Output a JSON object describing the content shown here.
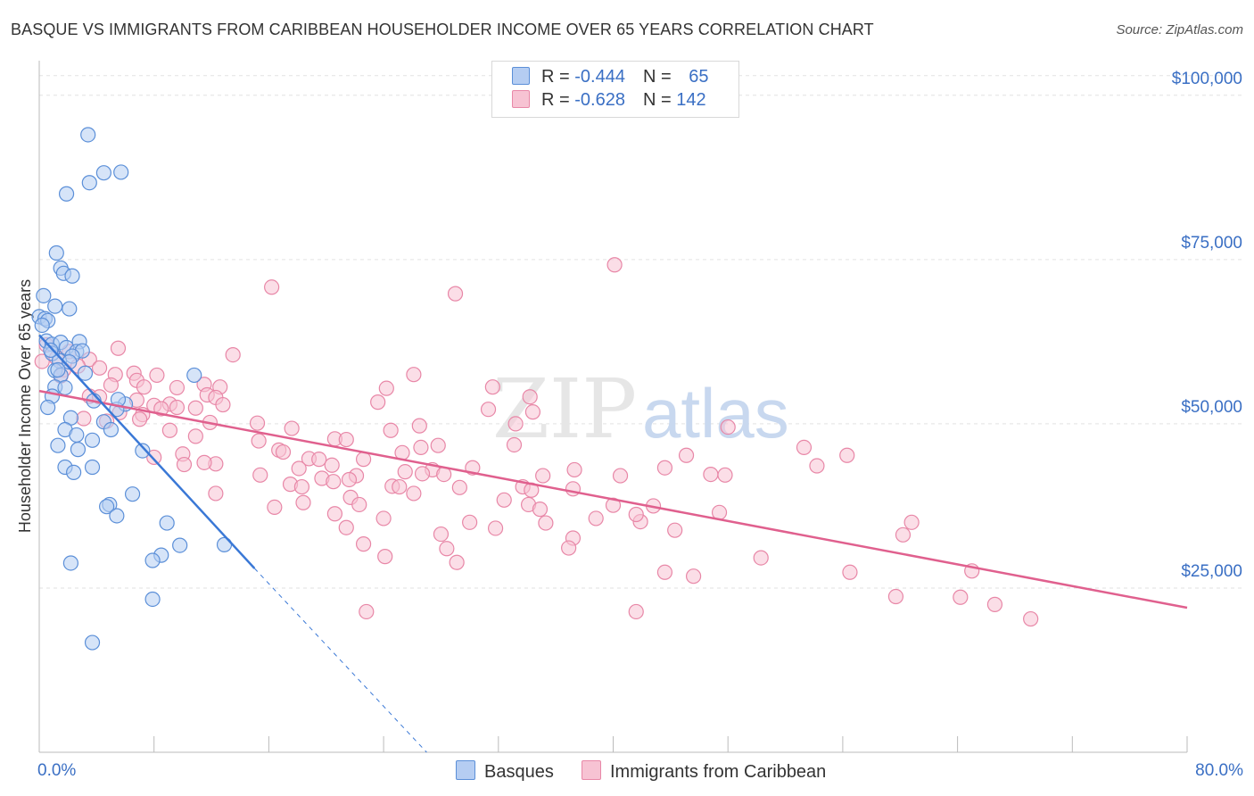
{
  "title": "BASQUE VS IMMIGRANTS FROM CARIBBEAN HOUSEHOLDER INCOME OVER 65 YEARS CORRELATION CHART",
  "source": "Source: ZipAtlas.com",
  "watermark": {
    "zip": "ZIP",
    "atlas": "atlas"
  },
  "legend": {
    "basque": {
      "r_label": "R = ",
      "r_value": "-0.444",
      "n_label": "N = ",
      "n_value": "65"
    },
    "caribbean": {
      "r_label": "R = ",
      "r_value": "-0.628",
      "n_label": "N = ",
      "n_value": "142"
    }
  },
  "colors": {
    "basque_fill": "#b5cdf2",
    "basque_stroke": "#5b8fd8",
    "basque_line": "#3a78d6",
    "carib_fill": "#f7c3d3",
    "carib_stroke": "#e887a7",
    "carib_line": "#e0608e",
    "grid": "#e2e2e2",
    "tick_text": "#3a6fc4"
  },
  "chart_data": {
    "type": "scatter",
    "title": "BASQUE VS IMMIGRANTS FROM CARIBBEAN HOUSEHOLDER INCOME OVER 65 YEARS CORRELATION CHART",
    "xlabel": "",
    "ylabel": "Householder Income Over 65 years",
    "xlim": [
      0,
      80
    ],
    "ylim": [
      0,
      105000
    ],
    "x_tick_labels": [
      "0.0%",
      "80.0%"
    ],
    "y_ticks": [
      25000,
      50000,
      75000,
      100000
    ],
    "y_tick_labels": [
      "$25,000",
      "$50,000",
      "$75,000",
      "$100,000"
    ],
    "grid": true,
    "series": [
      {
        "name": "Basques",
        "trend": {
          "x0": 0,
          "y0": 63500,
          "x1": 15,
          "y1": 28000,
          "dash_to_x": 27,
          "dash_to_y": 0
        },
        "points": [
          [
            3.4,
            94000
          ],
          [
            4.5,
            88200
          ],
          [
            5.7,
            88300
          ],
          [
            3.5,
            86700
          ],
          [
            1.9,
            85000
          ],
          [
            1.2,
            76000
          ],
          [
            1.5,
            73700
          ],
          [
            1.7,
            72900
          ],
          [
            2.3,
            72500
          ],
          [
            0.3,
            69500
          ],
          [
            1.1,
            67900
          ],
          [
            2.1,
            67500
          ],
          [
            0.0,
            66300
          ],
          [
            0.4,
            66000
          ],
          [
            0.6,
            65700
          ],
          [
            0.2,
            65000
          ],
          [
            0.5,
            62600
          ],
          [
            0.9,
            62100
          ],
          [
            1.5,
            62400
          ],
          [
            2.8,
            62500
          ],
          [
            1.9,
            61600
          ],
          [
            2.6,
            61000
          ],
          [
            0.9,
            60700
          ],
          [
            3.0,
            61100
          ],
          [
            2.3,
            60300
          ],
          [
            1.4,
            59600
          ],
          [
            1.1,
            58100
          ],
          [
            3.2,
            57700
          ],
          [
            1.5,
            57400
          ],
          [
            10.8,
            57400
          ],
          [
            1.1,
            55600
          ],
          [
            1.8,
            55500
          ],
          [
            0.9,
            54200
          ],
          [
            3.8,
            53500
          ],
          [
            6.0,
            53000
          ],
          [
            0.6,
            52500
          ],
          [
            5.4,
            52200
          ],
          [
            2.2,
            50900
          ],
          [
            4.5,
            50300
          ],
          [
            1.8,
            49100
          ],
          [
            5.0,
            49100
          ],
          [
            2.6,
            48300
          ],
          [
            3.7,
            47500
          ],
          [
            1.3,
            46700
          ],
          [
            2.7,
            46100
          ],
          [
            7.2,
            45900
          ],
          [
            1.8,
            43400
          ],
          [
            3.7,
            43400
          ],
          [
            2.4,
            42600
          ],
          [
            6.5,
            39300
          ],
          [
            4.9,
            37700
          ],
          [
            4.7,
            37400
          ],
          [
            5.4,
            36000
          ],
          [
            8.9,
            34900
          ],
          [
            9.8,
            31500
          ],
          [
            12.9,
            31600
          ],
          [
            8.5,
            30000
          ],
          [
            7.9,
            29200
          ],
          [
            2.2,
            28800
          ],
          [
            7.9,
            23300
          ],
          [
            3.7,
            16700
          ],
          [
            0.8,
            61200
          ],
          [
            2.1,
            59400
          ],
          [
            1.3,
            58200
          ],
          [
            5.5,
            53700
          ]
        ]
      },
      {
        "name": "Immigrants from Caribbean",
        "trend": {
          "x0": 0,
          "y0": 55000,
          "x1": 80,
          "y1": 22000
        },
        "points": [
          [
            40.1,
            74200
          ],
          [
            16.2,
            70800
          ],
          [
            29.0,
            69800
          ],
          [
            0.5,
            62000
          ],
          [
            5.5,
            61500
          ],
          [
            2.1,
            61000
          ],
          [
            13.5,
            60500
          ],
          [
            1.2,
            60000
          ],
          [
            3.5,
            59800
          ],
          [
            0.2,
            59500
          ],
          [
            2.7,
            58800
          ],
          [
            4.2,
            58500
          ],
          [
            1.7,
            58200
          ],
          [
            6.6,
            57700
          ],
          [
            5.3,
            57500
          ],
          [
            8.2,
            57400
          ],
          [
            1.5,
            57300
          ],
          [
            26.1,
            57500
          ],
          [
            6.8,
            56600
          ],
          [
            11.5,
            56000
          ],
          [
            5.0,
            55900
          ],
          [
            9.6,
            55500
          ],
          [
            7.3,
            55600
          ],
          [
            12.6,
            55600
          ],
          [
            24.2,
            55400
          ],
          [
            31.6,
            55600
          ],
          [
            3.5,
            54200
          ],
          [
            11.7,
            54400
          ],
          [
            4.2,
            54100
          ],
          [
            12.3,
            54000
          ],
          [
            6.8,
            53600
          ],
          [
            34.2,
            54100
          ],
          [
            23.6,
            53300
          ],
          [
            9.1,
            53000
          ],
          [
            12.8,
            52900
          ],
          [
            8.0,
            52800
          ],
          [
            9.6,
            52500
          ],
          [
            10.9,
            52400
          ],
          [
            8.5,
            52300
          ],
          [
            31.3,
            52200
          ],
          [
            34.4,
            51800
          ],
          [
            5.6,
            51700
          ],
          [
            7.2,
            51400
          ],
          [
            3.1,
            50800
          ],
          [
            7.0,
            50700
          ],
          [
            4.7,
            50400
          ],
          [
            11.9,
            50200
          ],
          [
            15.2,
            50100
          ],
          [
            33.2,
            50000
          ],
          [
            48.0,
            49500
          ],
          [
            17.6,
            49300
          ],
          [
            24.5,
            49000
          ],
          [
            26.5,
            49700
          ],
          [
            9.1,
            49000
          ],
          [
            10.9,
            48100
          ],
          [
            20.6,
            47700
          ],
          [
            21.4,
            47600
          ],
          [
            15.3,
            47400
          ],
          [
            27.8,
            46700
          ],
          [
            33.1,
            46800
          ],
          [
            26.6,
            46400
          ],
          [
            16.7,
            46000
          ],
          [
            17.0,
            45700
          ],
          [
            10.0,
            45400
          ],
          [
            25.3,
            45600
          ],
          [
            8.0,
            44900
          ],
          [
            18.8,
            44700
          ],
          [
            19.5,
            44600
          ],
          [
            22.6,
            44600
          ],
          [
            12.3,
            43900
          ],
          [
            11.5,
            44100
          ],
          [
            10.1,
            43800
          ],
          [
            20.4,
            43700
          ],
          [
            18.1,
            43200
          ],
          [
            30.2,
            43300
          ],
          [
            27.4,
            43000
          ],
          [
            37.3,
            43000
          ],
          [
            43.6,
            43300
          ],
          [
            54.2,
            43600
          ],
          [
            56.3,
            45200
          ],
          [
            53.3,
            46400
          ],
          [
            45.1,
            45200
          ],
          [
            46.8,
            42300
          ],
          [
            47.8,
            42200
          ],
          [
            15.4,
            42200
          ],
          [
            22.1,
            42100
          ],
          [
            25.5,
            42700
          ],
          [
            26.7,
            42400
          ],
          [
            28.2,
            42300
          ],
          [
            35.1,
            42100
          ],
          [
            40.5,
            42100
          ],
          [
            19.7,
            41700
          ],
          [
            21.6,
            41500
          ],
          [
            20.5,
            41200
          ],
          [
            17.5,
            40800
          ],
          [
            18.3,
            40400
          ],
          [
            24.6,
            40500
          ],
          [
            25.1,
            40400
          ],
          [
            29.3,
            40300
          ],
          [
            33.7,
            40400
          ],
          [
            37.2,
            40100
          ],
          [
            34.3,
            39900
          ],
          [
            26.1,
            39400
          ],
          [
            12.3,
            39400
          ],
          [
            21.7,
            38800
          ],
          [
            18.4,
            38000
          ],
          [
            22.3,
            37700
          ],
          [
            34.1,
            37700
          ],
          [
            32.4,
            38400
          ],
          [
            40.0,
            37600
          ],
          [
            42.8,
            37500
          ],
          [
            47.4,
            36500
          ],
          [
            41.9,
            35100
          ],
          [
            16.4,
            37300
          ],
          [
            20.6,
            36300
          ],
          [
            24.0,
            35600
          ],
          [
            30.0,
            35000
          ],
          [
            35.3,
            34900
          ],
          [
            34.9,
            37000
          ],
          [
            38.8,
            35600
          ],
          [
            44.3,
            33800
          ],
          [
            41.6,
            36200
          ],
          [
            31.8,
            34100
          ],
          [
            60.2,
            33100
          ],
          [
            60.8,
            35000
          ],
          [
            21.4,
            34200
          ],
          [
            28.0,
            33200
          ],
          [
            28.4,
            31000
          ],
          [
            37.2,
            32600
          ],
          [
            36.9,
            31100
          ],
          [
            22.6,
            31700
          ],
          [
            24.1,
            29800
          ],
          [
            29.1,
            28900
          ],
          [
            43.6,
            27400
          ],
          [
            56.5,
            27400
          ],
          [
            50.3,
            29600
          ],
          [
            65.0,
            27600
          ],
          [
            45.6,
            26800
          ],
          [
            59.7,
            23700
          ],
          [
            64.2,
            23600
          ],
          [
            66.6,
            22500
          ],
          [
            69.1,
            20300
          ],
          [
            22.8,
            21400
          ],
          [
            41.6,
            21400
          ]
        ]
      }
    ]
  },
  "bottom_legend": {
    "basques": "Basques",
    "caribbean": "Immigrants from Caribbean"
  }
}
